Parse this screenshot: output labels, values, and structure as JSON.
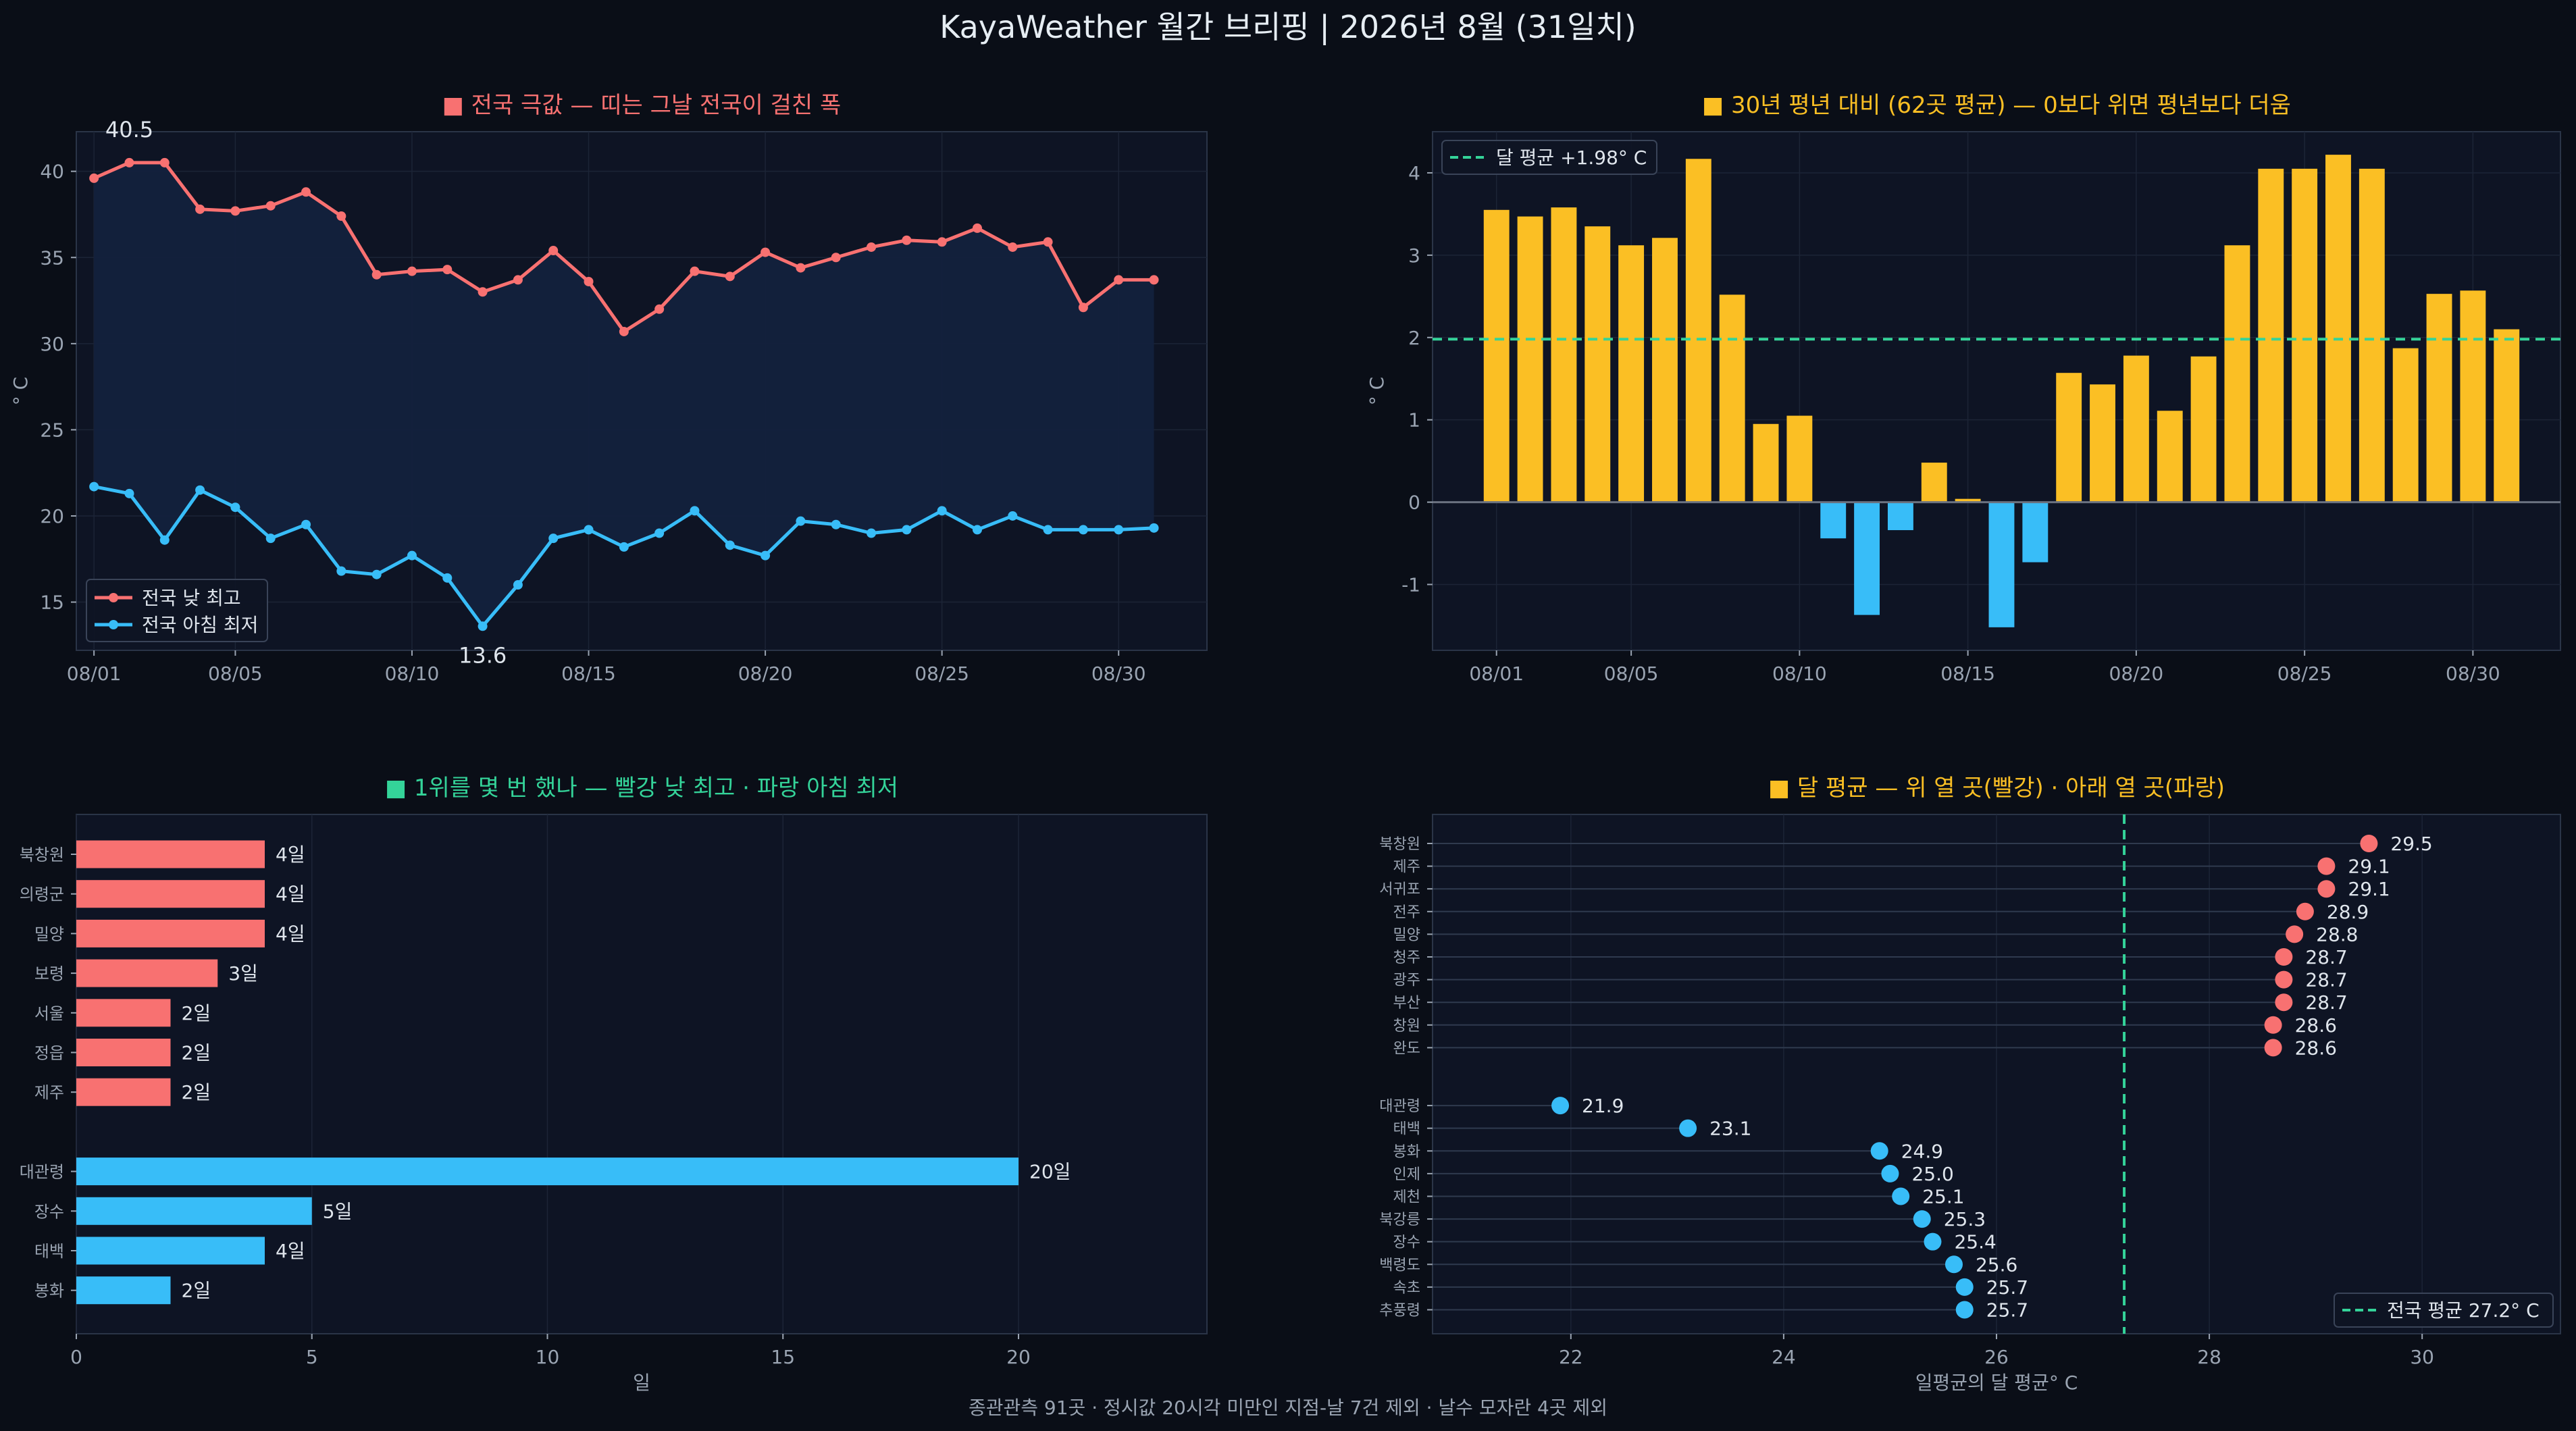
{
  "title": "KayaWeather 월간 브리핑 | 2026년 8월 (31일치)",
  "footer": "종관관측 91곳 · 정시값 20시각 미만인 지점-날 7건 제외 · 날수 모자란 4곳 제외",
  "colors": {
    "background": "#0a0e17",
    "panel": "#0e1424",
    "hot": "#f87171",
    "cold": "#38bdf8",
    "anomaly": "#fbbf24",
    "reference": "#34d399",
    "band": "#13213d"
  },
  "chart_data": [
    {
      "type": "line",
      "title": "■ 전국 극값 — 띠는 그날 전국이 걸친 폭",
      "xlabel": "",
      "ylabel": "° C",
      "ylim": [
        12.2,
        42.3
      ],
      "yticks": [
        "15",
        "20",
        "25",
        "30",
        "35",
        "40"
      ],
      "x_tick_labels": [
        "08/01",
        "08/05",
        "08/10",
        "08/15",
        "08/20",
        "08/25",
        "08/30"
      ],
      "x_tick_days": [
        1,
        5,
        10,
        15,
        20,
        25,
        30
      ],
      "x_days": [
        1,
        2,
        3,
        4,
        5,
        6,
        7,
        8,
        9,
        10,
        11,
        12,
        13,
        14,
        15,
        16,
        17,
        18,
        19,
        20,
        21,
        22,
        23,
        24,
        25,
        26,
        27,
        28,
        29,
        30,
        31
      ],
      "series": [
        {
          "name": "전국 낮 최고",
          "color": "#f87171",
          "values": [
            39.6,
            40.5,
            40.5,
            37.8,
            37.7,
            38.0,
            38.8,
            37.4,
            34.0,
            34.2,
            34.3,
            33.0,
            33.7,
            35.4,
            33.6,
            30.7,
            32.0,
            34.2,
            33.9,
            35.3,
            34.4,
            35.0,
            35.6,
            36.0,
            35.9,
            36.7,
            35.6,
            35.9,
            32.1,
            33.7,
            33.7
          ]
        },
        {
          "name": "전국 아침 최저",
          "color": "#38bdf8",
          "values": [
            21.7,
            21.3,
            18.6,
            21.5,
            20.5,
            18.7,
            19.5,
            16.8,
            16.6,
            17.7,
            16.4,
            13.6,
            16.0,
            18.7,
            19.2,
            18.2,
            19.0,
            20.3,
            18.3,
            17.7,
            19.7,
            19.5,
            19.0,
            19.2,
            20.3,
            19.2,
            20.0,
            19.2,
            19.2,
            19.2,
            19.3
          ]
        }
      ],
      "annotations": [
        {
          "text": "40.5",
          "series": 0,
          "day": 2
        },
        {
          "text": "13.6",
          "series": 1,
          "day": 12
        }
      ],
      "legend": "lower-left"
    },
    {
      "type": "bar",
      "title": "■ 30년 평년 대비 (62곳 평균) — 0보다 위면 평년보다 더움",
      "ylabel": "° C",
      "ylim": [
        -1.8,
        4.5
      ],
      "yticks": [
        "-1",
        "0",
        "1",
        "2",
        "3",
        "4"
      ],
      "x_tick_labels": [
        "08/01",
        "08/05",
        "08/10",
        "08/15",
        "08/20",
        "08/25",
        "08/30"
      ],
      "x_tick_days": [
        1,
        5,
        10,
        15,
        20,
        25,
        30
      ],
      "x_days": [
        1,
        2,
        3,
        4,
        5,
        6,
        7,
        8,
        9,
        10,
        11,
        12,
        13,
        14,
        15,
        16,
        17,
        18,
        19,
        20,
        21,
        22,
        23,
        24,
        25,
        26,
        27,
        28,
        29,
        30,
        31
      ],
      "values": [
        3.55,
        3.47,
        3.58,
        3.35,
        3.12,
        3.21,
        4.17,
        2.52,
        0.95,
        1.05,
        -0.44,
        -1.37,
        -0.34,
        0.48,
        0.04,
        -1.52,
        -0.73,
        1.57,
        1.43,
        1.78,
        1.11,
        1.77,
        3.12,
        4.05,
        4.05,
        4.22,
        4.05,
        1.87,
        2.53,
        2.57,
        2.1
      ],
      "reference": {
        "label": "달 평균 +1.98° C",
        "value": 1.98
      },
      "legend": "top-left"
    },
    {
      "type": "bar",
      "orientation": "horizontal",
      "title": "■ 1위를 몇 번 했나 — 빨강 낮 최고 · 파랑 아침 최저",
      "xlabel": "일",
      "xlim": [
        0,
        24
      ],
      "xticks": [
        "0",
        "5",
        "10",
        "15",
        "20"
      ],
      "groups": [
        {
          "color": "#f87171",
          "categories": [
            "북창원",
            "의령군",
            "밀양",
            "보령",
            "서울",
            "정읍",
            "제주"
          ],
          "values": [
            4,
            4,
            4,
            3,
            2,
            2,
            2
          ],
          "labels": [
            "4일",
            "4일",
            "4일",
            "3일",
            "2일",
            "2일",
            "2일"
          ]
        },
        {
          "color": "#38bdf8",
          "categories": [
            "대관령",
            "장수",
            "태백",
            "봉화"
          ],
          "values": [
            20,
            5,
            4,
            2
          ],
          "labels": [
            "20일",
            "5일",
            "4일",
            "2일"
          ]
        }
      ]
    },
    {
      "type": "scatter",
      "subtype": "lollipop",
      "title": "■ 달 평균 — 위 열 곳(빨강) · 아래 열 곳(파랑)",
      "xlabel": "일평균의 달 평균° C",
      "xlim": [
        20.7,
        31.3
      ],
      "xticks": [
        "22",
        "24",
        "26",
        "28",
        "30"
      ],
      "groups": [
        {
          "color": "#f87171",
          "categories": [
            "북창원",
            "제주",
            "서귀포",
            "전주",
            "밀양",
            "청주",
            "광주",
            "부산",
            "창원",
            "완도"
          ],
          "values": [
            29.5,
            29.1,
            29.1,
            28.9,
            28.8,
            28.7,
            28.7,
            28.7,
            28.6,
            28.6
          ],
          "labels": [
            "29.5",
            "29.1",
            "29.1",
            "28.9",
            "28.8",
            "28.7",
            "28.7",
            "28.7",
            "28.6",
            "28.6"
          ]
        },
        {
          "color": "#38bdf8",
          "categories": [
            "대관령",
            "태백",
            "봉화",
            "인제",
            "제천",
            "북강릉",
            "장수",
            "백령도",
            "속초",
            "추풍령"
          ],
          "values": [
            21.9,
            23.1,
            24.9,
            25.0,
            25.1,
            25.3,
            25.4,
            25.6,
            25.7,
            25.7
          ],
          "labels": [
            "21.9",
            "23.1",
            "24.9",
            "25.0",
            "25.1",
            "25.3",
            "25.4",
            "25.6",
            "25.7",
            "25.7"
          ]
        }
      ],
      "reference": {
        "label": "전국 평균 27.2° C",
        "value": 27.2
      },
      "legend": "lower-right"
    }
  ]
}
